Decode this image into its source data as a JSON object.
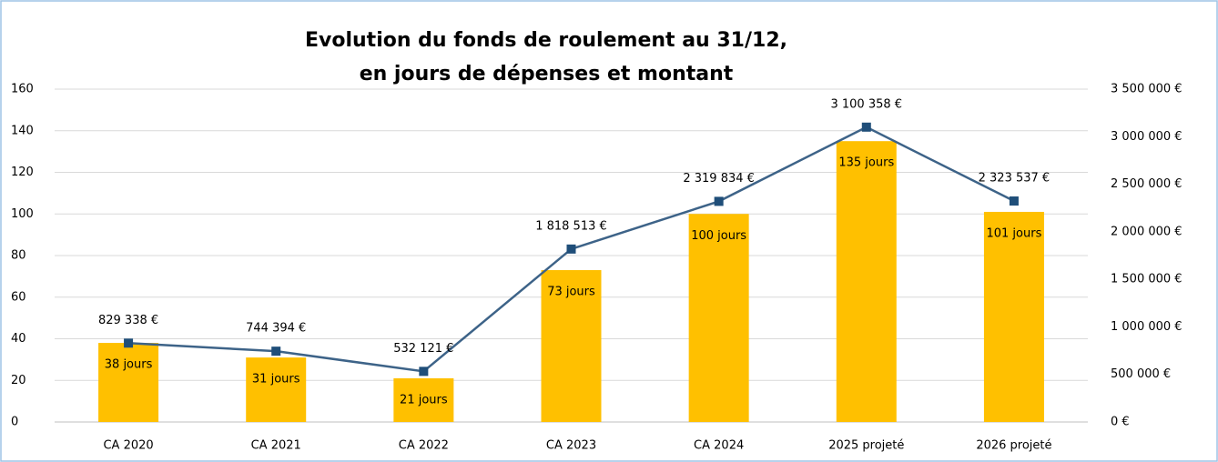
{
  "chart_data": {
    "type": "combo",
    "title": [
      "Evolution du fonds de roulement au 31/12,",
      "en jours de dépenses et montant"
    ],
    "categories": [
      "CA 2020",
      "CA 2021",
      "CA 2022",
      "CA 2023",
      "CA 2024",
      "2025 projeté",
      "2026 projeté"
    ],
    "series": [
      {
        "type": "bar",
        "color": "#ffc000",
        "values": [
          38,
          31,
          21,
          73,
          100,
          135,
          101
        ],
        "value_labels": [
          "38 jours",
          "31 jours",
          "21 jours",
          "73 jours",
          "100 jours",
          "135 jours",
          "101 jours"
        ]
      },
      {
        "type": "line",
        "axis": "y2",
        "color": "#3d6388",
        "marker_color": "#1f4e79",
        "values": [
          829338,
          744394,
          532121,
          1818513,
          2319834,
          3100358,
          2323537
        ],
        "value_labels": [
          "829 338 €",
          "744 394 €",
          "532 121 €",
          "1 818 513 €",
          "2 319 834 €",
          "3 100 358 €",
          "2 323 537 €"
        ]
      }
    ],
    "ylim": [
      0,
      160
    ],
    "yticks": [
      0,
      20,
      40,
      60,
      80,
      100,
      120,
      140,
      160
    ],
    "y2lim": [
      0,
      3500000
    ],
    "y2ticks": [
      {
        "value": 0,
        "label": "0 €"
      },
      {
        "value": 500000,
        "label": "500 000 €"
      },
      {
        "value": 1000000,
        "label": "1 000 000 €"
      },
      {
        "value": 1500000,
        "label": "1 500 000 €"
      },
      {
        "value": 2000000,
        "label": "2 000 000 €"
      },
      {
        "value": 2500000,
        "label": "2 500 000 €"
      },
      {
        "value": 3000000,
        "label": "3 000 000 €"
      },
      {
        "value": 3500000,
        "label": "3 500 000 €"
      }
    ],
    "grid": true
  }
}
